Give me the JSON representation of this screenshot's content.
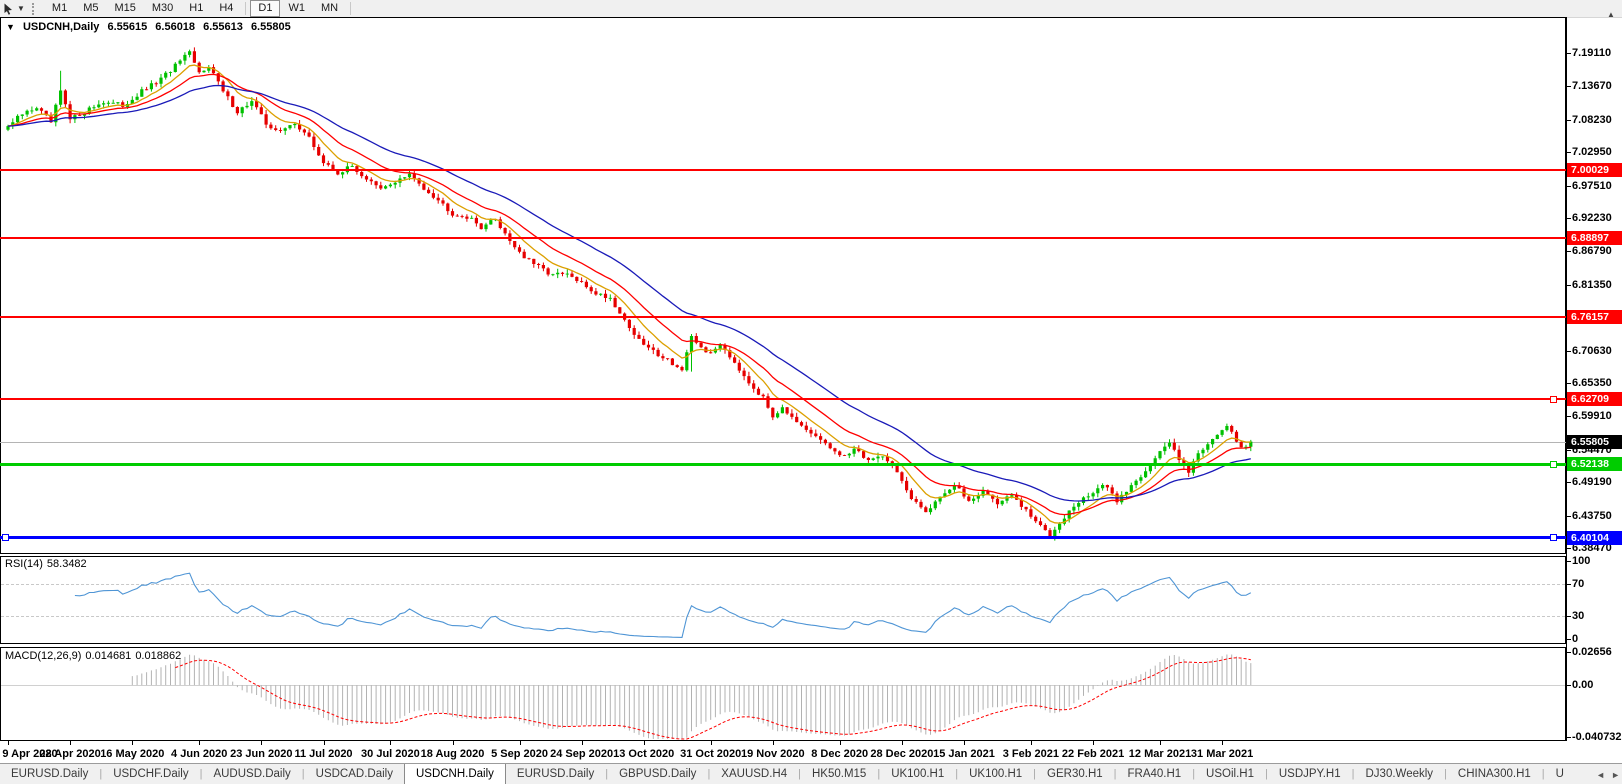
{
  "toolbar": {
    "timeframes": [
      "M1",
      "M5",
      "M15",
      "M30",
      "H1",
      "H4",
      "D1",
      "W1",
      "MN"
    ],
    "active_timeframe": "D1",
    "group_break_before": "D1"
  },
  "header": {
    "symbol_period": "USDCNH,Daily",
    "quote": {
      "open": "6.55615",
      "high": "6.56018",
      "low": "6.55613",
      "close": "6.55805"
    }
  },
  "price_axis": {
    "ticks": [
      "7.19110",
      "7.13670",
      "7.08230",
      "7.02950",
      "6.97510",
      "6.92230",
      "6.86790",
      "6.81350",
      "6.70630",
      "6.65350",
      "6.59910",
      "6.54470",
      "6.49190",
      "6.43750",
      "6.38470"
    ]
  },
  "current_price": {
    "value": "6.55805",
    "line_color": "#b4b4b4",
    "label_bg": "#000000",
    "label_fg": "#ffffff"
  },
  "hlines": [
    {
      "value": "7.00029",
      "color": "#ff0000",
      "thickness": 2,
      "handles": []
    },
    {
      "value": "6.88897",
      "color": "#ff0000",
      "thickness": 2,
      "handles": []
    },
    {
      "value": "6.76157",
      "color": "#ff0000",
      "thickness": 2,
      "handles": []
    },
    {
      "value": "6.62709",
      "color": "#ff0000",
      "thickness": 2,
      "handles": [
        "right"
      ]
    },
    {
      "value": "6.52138",
      "color": "#00cc00",
      "thickness": 3,
      "handles": [
        "right"
      ]
    },
    {
      "value": "6.40104",
      "color": "#0000ff",
      "thickness": 3,
      "handles": [
        "left",
        "right"
      ]
    }
  ],
  "date_axis": {
    "labels": [
      {
        "label": "9 Apr 2020",
        "index": 0
      },
      {
        "label": "28 Apr 2020",
        "index": 13
      },
      {
        "label": "16 May 2020",
        "index": 26
      },
      {
        "label": "4 Jun 2020",
        "index": 40
      },
      {
        "label": "23 Jun 2020",
        "index": 53
      },
      {
        "label": "11 Jul 2020",
        "index": 66
      },
      {
        "label": "30 Jul 2020",
        "index": 80
      },
      {
        "label": "18 Aug 2020",
        "index": 93
      },
      {
        "label": "5 Sep 2020",
        "index": 107
      },
      {
        "label": "24 Sep 2020",
        "index": 120
      },
      {
        "label": "13 Oct 2020",
        "index": 133
      },
      {
        "label": "31 Oct 2020",
        "index": 147
      },
      {
        "label": "19 Nov 2020",
        "index": 160
      },
      {
        "label": "8 Dec 2020",
        "index": 174
      },
      {
        "label": "28 Dec 2020",
        "index": 187
      },
      {
        "label": "15 Jan 2021",
        "index": 200
      },
      {
        "label": "3 Feb 2021",
        "index": 214
      },
      {
        "label": "22 Feb 2021",
        "index": 227
      },
      {
        "label": "12 Mar 2021",
        "index": 241
      },
      {
        "label": "31 Mar 2021",
        "index": 254
      }
    ]
  },
  "indicators": {
    "rsi": {
      "label": "RSI(14)",
      "value": "58.3482",
      "period": 14,
      "ticks": [
        "100",
        "70",
        "30",
        "0"
      ],
      "dashed_levels": [
        70,
        30
      ],
      "line_color": "#4f95d5"
    },
    "macd": {
      "label": "MACD(12,26,9)",
      "macd_value": "0.014681",
      "signal_value": "0.018862",
      "fast": 12,
      "slow": 26,
      "signal": 9,
      "ticks": [
        "0.02656",
        "0.00",
        "-0.040732"
      ],
      "range_max": 0.02656,
      "range_min": -0.040732,
      "histogram_color": "#b2b2b2",
      "signal_color": "#ff0000",
      "zero_line_color": "#d0d0d0"
    }
  },
  "chart_data": {
    "type": "candlestick",
    "symbol": "USDCNH",
    "timeframe": "Daily",
    "ylim": [
      6.3765,
      7.2481
    ],
    "candle_count": 261,
    "last_close": 6.55805,
    "bull_color": "#00c000",
    "bear_color": "#e60000",
    "noise_seed": 987654321,
    "noise_amp": 0.004,
    "wick_amp": 0.007,
    "close_anchors": [
      0,
      7.072,
      3,
      7.091,
      6,
      7.103,
      9,
      7.078,
      11,
      7.128,
      13,
      7.082,
      16,
      7.096,
      20,
      7.112,
      24,
      7.105,
      28,
      7.128,
      32,
      7.148,
      36,
      7.178,
      38,
      7.19,
      40,
      7.158,
      42,
      7.172,
      45,
      7.128,
      48,
      7.096,
      51,
      7.112,
      54,
      7.076,
      57,
      7.062,
      60,
      7.078,
      63,
      7.052,
      66,
      7.012,
      69,
      6.996,
      72,
      7.006,
      75,
      6.986,
      78,
      6.968,
      81,
      6.982,
      84,
      6.992,
      87,
      6.972,
      90,
      6.952,
      93,
      6.93,
      96,
      6.924,
      99,
      6.908,
      102,
      6.92,
      105,
      6.886,
      108,
      6.858,
      111,
      6.842,
      114,
      6.83,
      117,
      6.83,
      120,
      6.815,
      123,
      6.8,
      126,
      6.792,
      129,
      6.756,
      132,
      6.722,
      135,
      6.705,
      138,
      6.692,
      141,
      6.674,
      143,
      6.726,
      145,
      6.712,
      147,
      6.7,
      149,
      6.718,
      152,
      6.688,
      155,
      6.656,
      158,
      6.628,
      160,
      6.6,
      162,
      6.616,
      165,
      6.586,
      168,
      6.57,
      171,
      6.556,
      174,
      6.532,
      177,
      6.546,
      180,
      6.528,
      183,
      6.536,
      186,
      6.51,
      189,
      6.462,
      192,
      6.444,
      195,
      6.47,
      198,
      6.486,
      201,
      6.462,
      204,
      6.478,
      207,
      6.458,
      210,
      6.47,
      213,
      6.444,
      216,
      6.42,
      218,
      6.406,
      220,
      6.428,
      223,
      6.452,
      226,
      6.47,
      229,
      6.488,
      232,
      6.462,
      235,
      6.486,
      238,
      6.512,
      241,
      6.54,
      243,
      6.556,
      245,
      6.532,
      247,
      6.51,
      249,
      6.538,
      251,
      6.556,
      253,
      6.572,
      255,
      6.58,
      257,
      6.56,
      258,
      6.548,
      259,
      6.552,
      260,
      6.558
    ],
    "wick_overrides": {
      "11": {
        "h": 7.162
      },
      "38": {
        "h": 7.1966
      },
      "143": {
        "l": 6.672
      },
      "218": {
        "l": 6.4012
      }
    },
    "moving_averages": [
      {
        "type": "ema",
        "period": 8,
        "color": "#dca000"
      },
      {
        "type": "ema",
        "period": 17,
        "color": "#ff0000"
      },
      {
        "type": "ema",
        "period": 34,
        "color": "#1a1ab8"
      }
    ]
  },
  "bottom_tabs": {
    "active_index": 4,
    "items": [
      "EURUSD.Daily",
      "USDCHF.Daily",
      "AUDUSD.Daily",
      "USDCAD.Daily",
      "USDCNH.Daily",
      "EURUSD.Daily",
      "GBPUSD.Daily",
      "XAUUSD.H4",
      "HK50.M15",
      "UK100.H1",
      "UK100.H1",
      "GER30.H1",
      "FRA40.H1",
      "USOil.H1",
      "USDJPY.H1",
      "DJ30.Weekly",
      "CHINA300.H1",
      "U"
    ],
    "scroll_left": "◄",
    "scroll_right": "►"
  }
}
